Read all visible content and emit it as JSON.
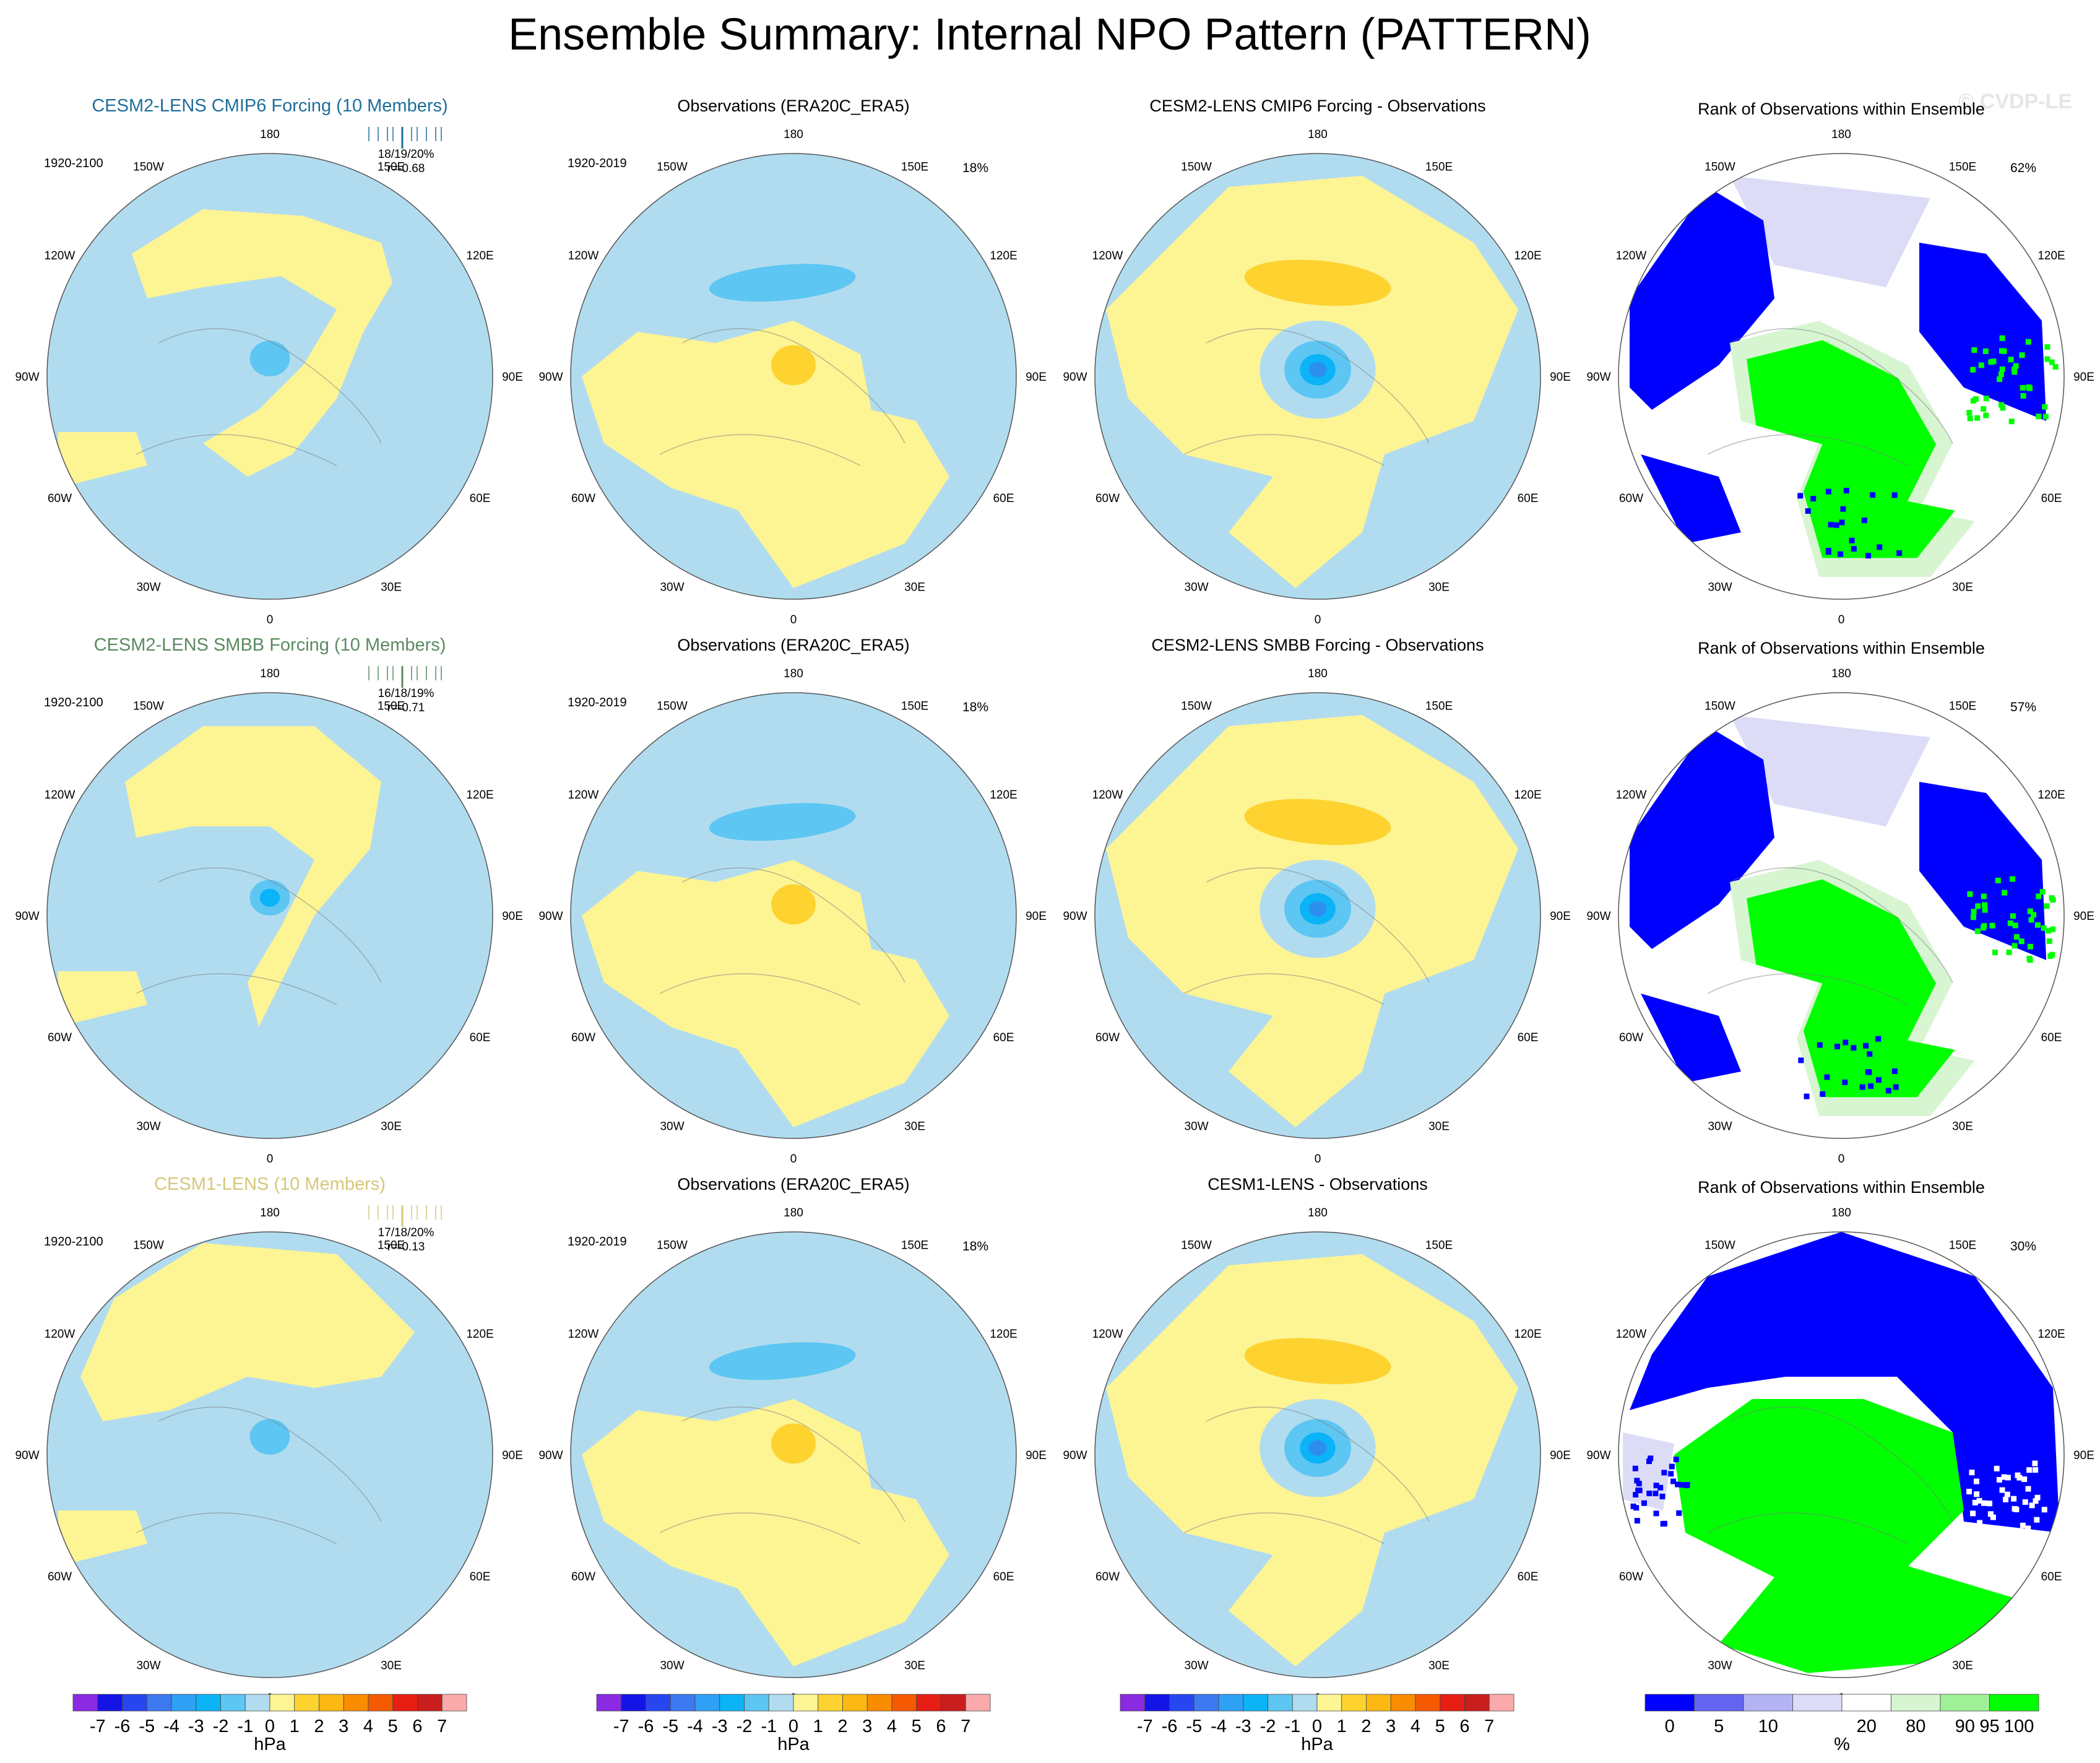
{
  "title": "Ensemble Summary: Internal NPO Pattern (PATTERN)",
  "watermark": "© CVDP-LE",
  "colors": {
    "map_blue": "#b1dcf0",
    "map_yellow": "#fdf494",
    "map_blue_mid": "#5ec6f2",
    "map_blue_deep": "#0bb3f7",
    "map_blue_core": "#2c8ff0",
    "map_orange": "#fed330",
    "rank_blue": "#0000ff",
    "rank_green": "#00ff00",
    "rank_lavender": "#dcdcf7",
    "rank_lightgreen": "#d8f5d2",
    "rank_white": "#ffffff",
    "row1_title": "#1f6e9a",
    "row2_title": "#5b8a60",
    "row3_title": "#d6c77a"
  },
  "lon_labels": [
    "180",
    "150E",
    "120E",
    "90E",
    "60E",
    "30E",
    "0",
    "30W",
    "60W",
    "90W",
    "120W",
    "150W"
  ],
  "rows": [
    {
      "model_title": "CESM2-LENS CMIP6 Forcing (10 Members)",
      "model_period": "1920-2100",
      "model_stats": "18/19/20%",
      "model_r": "r=-0.68",
      "obs_title": "Observations (ERA20C_ERA5)",
      "obs_period": "1920-2019",
      "obs_pct": "18%",
      "diff_title": "CESM2-LENS CMIP6 Forcing - Observations",
      "rank_title": "Rank of Observations within Ensemble",
      "rank_pct": "62%"
    },
    {
      "model_title": "CESM2-LENS SMBB Forcing (10 Members)",
      "model_period": "1920-2100",
      "model_stats": "16/18/19%",
      "model_r": "r=-0.71",
      "obs_title": "Observations (ERA20C_ERA5)",
      "obs_period": "1920-2019",
      "obs_pct": "18%",
      "diff_title": "CESM2-LENS SMBB Forcing - Observations",
      "rank_title": "Rank of Observations within Ensemble",
      "rank_pct": "57%"
    },
    {
      "model_title": "CESM1-LENS (10 Members)",
      "model_period": "1920-2100",
      "model_stats": "17/18/20%",
      "model_r": "r=-0.13",
      "obs_title": "Observations (ERA20C_ERA5)",
      "obs_period": "1920-2019",
      "obs_pct": "18%",
      "diff_title": "CESM1-LENS - Observations",
      "rank_title": "Rank of Observations within Ensemble",
      "rank_pct": "30%"
    }
  ],
  "chart_data": {
    "type": "heatmap",
    "projection": "north polar stereographic",
    "title": "Ensemble Summary: Internal NPO Pattern (PATTERN)",
    "panels_per_row": [
      "ensemble mean pattern",
      "observations",
      "difference",
      "rank of observations"
    ],
    "pattern_colorbar": {
      "unit": "hPa",
      "tick_labels": [
        "-7",
        "-6",
        "-5",
        "-4",
        "-3",
        "-2",
        "-1",
        "0",
        "1",
        "2",
        "3",
        "4",
        "5",
        "6",
        "7"
      ],
      "colors": [
        "#8a2be2",
        "#1414e6",
        "#2846f0",
        "#3c78f0",
        "#2ea0f5",
        "#0bb3f7",
        "#5ec6f2",
        "#b1dcf0",
        "#fdf494",
        "#fed330",
        "#fdb814",
        "#fa8c00",
        "#f55a00",
        "#e61e14",
        "#c81e1e",
        "#faaaaa"
      ]
    },
    "rank_colorbar": {
      "unit": "%",
      "tick_labels": [
        "0",
        "5",
        "10",
        "20",
        "80",
        "90",
        "95",
        "100"
      ],
      "colors": [
        "#0000ff",
        "#6464f0",
        "#b4b4f5",
        "#dcdcf7",
        "#ffffff",
        "#d8f5d2",
        "#a0f098",
        "#00ff00"
      ]
    }
  }
}
